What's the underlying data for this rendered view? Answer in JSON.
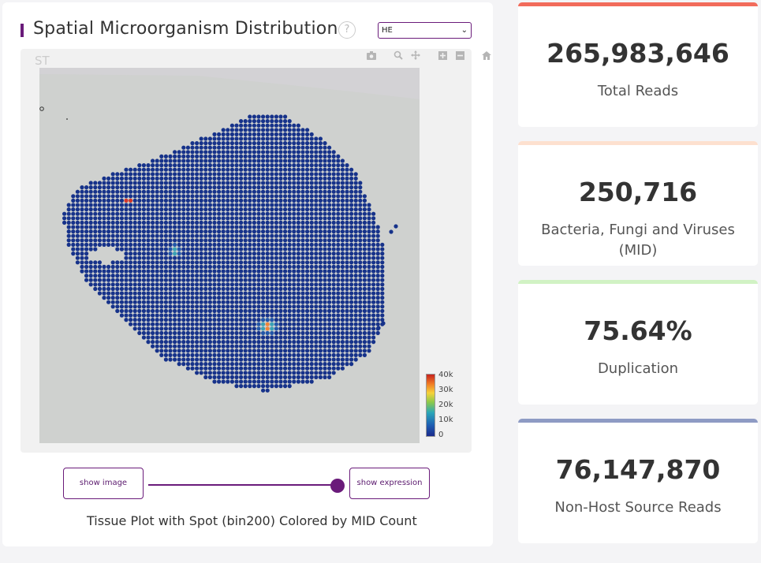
{
  "panel": {
    "title": "Spatial Microorganism Distribution",
    "help_icon": "?",
    "image_select": {
      "value": "HE",
      "icon": "chevron-down-icon"
    },
    "plot_label": "ST",
    "modebar": [
      "camera-icon",
      "zoom-icon",
      "pan-icon",
      "zoom-in-icon",
      "zoom-out-icon",
      "home-icon"
    ],
    "colorbar": {
      "ticks": [
        "40k",
        "30k",
        "20k",
        "10k",
        "0"
      ],
      "colors": [
        "#c6231f",
        "#f07a24",
        "#f6d23a",
        "#8cc94a",
        "#2aa6b8",
        "#1f5fb3",
        "#1b2a8c"
      ]
    },
    "toggle": {
      "left_label": "show image",
      "right_label": "show expression",
      "position": 1
    },
    "caption": "Tissue Plot with Spot (bin200) Colored by MID Count"
  },
  "stats": [
    {
      "value": "265,983,646",
      "label": "Total Reads",
      "color": "#f26b5b"
    },
    {
      "value": "250,716",
      "label": "Bacteria, Fungi and Viruses (MID)",
      "color": "#fde0cf"
    },
    {
      "value": "75.64%",
      "label": "Duplication",
      "color": "#d1f2c4"
    },
    {
      "value": "76,147,870",
      "label": "Non-Host Source Reads",
      "color": "#8e9bc4"
    }
  ]
}
